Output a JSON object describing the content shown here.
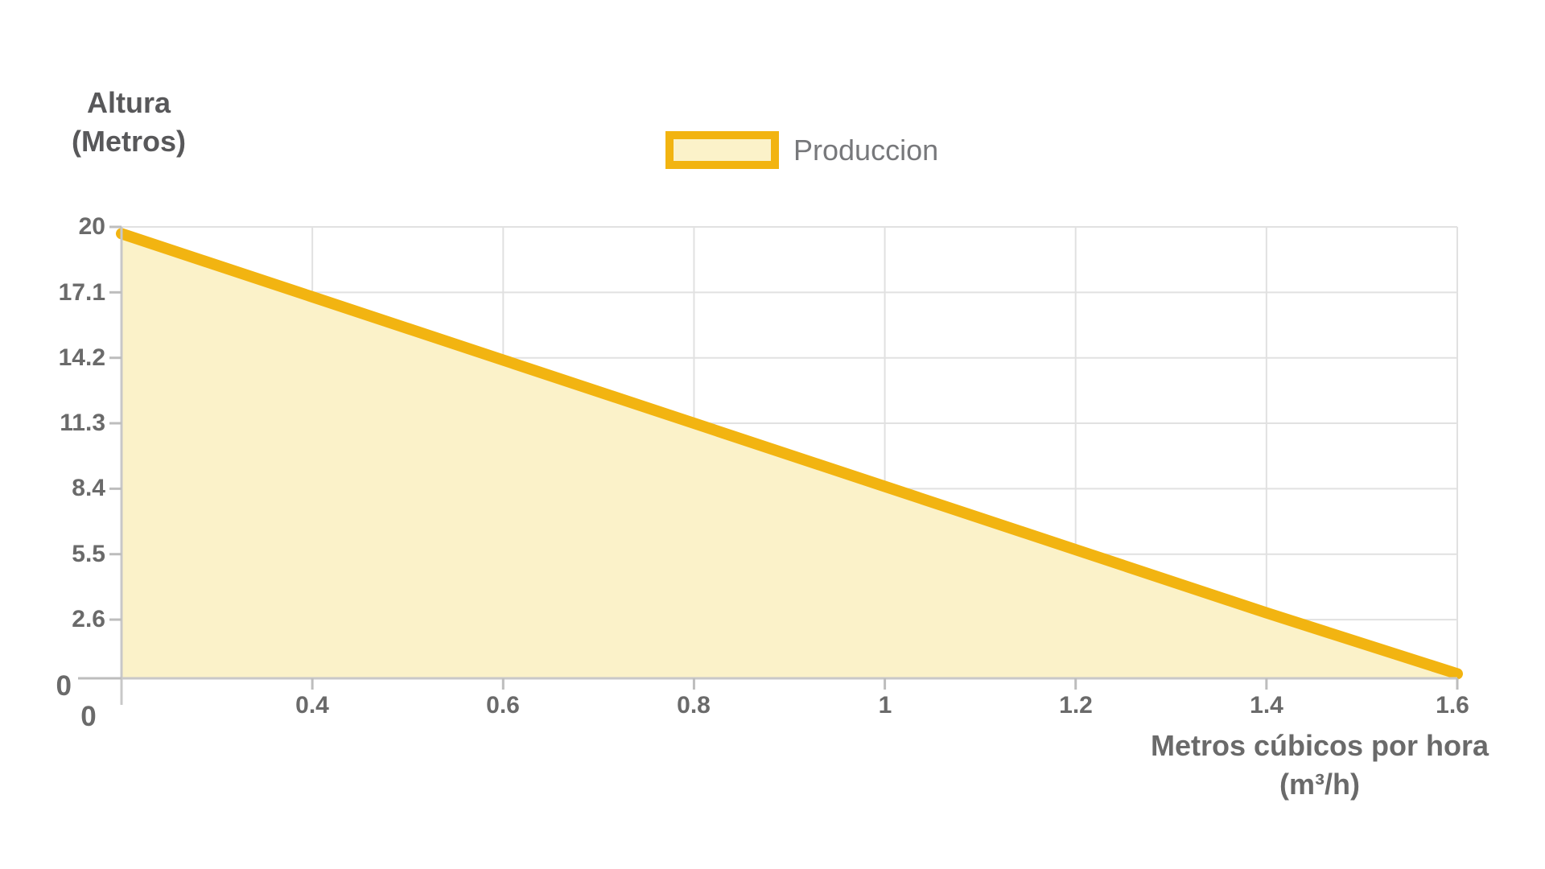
{
  "y_axis_title": {
    "line1": "Altura",
    "line2": "(Metros)"
  },
  "x_axis_title": {
    "line1": "Metros cúbicos por hora",
    "line2": "(m³/h)"
  },
  "legend": {
    "label": "Produccion"
  },
  "colors": {
    "line": "#f2b411",
    "area_fill": "#fbf2c9",
    "grid": "#e1e1e1",
    "axis": "#c8c8c8",
    "tick_mark": "#bdbdbd",
    "tick_text": "#6a6a6a",
    "axis_title_text": "#58585a",
    "legend_text": "#77787b"
  },
  "chart_data": {
    "type": "area",
    "title": "",
    "categories": [
      "0",
      "0.4",
      "0.6",
      "0.8",
      "1",
      "1.2",
      "1.4",
      "1.6"
    ],
    "series": [
      {
        "name": "Produccion",
        "values": [
          19.7,
          16.9,
          14.1,
          11.3,
          8.5,
          5.7,
          2.9,
          0.2
        ]
      }
    ],
    "xlabel": "Metros cúbicos por hora (m³/h)",
    "ylabel": "Altura (Metros)",
    "ylim": [
      0,
      20
    ],
    "y_ticks": [
      20,
      17.1,
      14.2,
      11.3,
      8.4,
      5.5,
      2.6,
      0
    ],
    "y_tick_labels": [
      "20",
      "17.1",
      "14.2",
      "11.3",
      "8.4",
      "5.5",
      "2.6"
    ],
    "y_zero_label": "0",
    "x_tick_labels": [
      "0.4",
      "0.6",
      "0.8",
      "1",
      "1.2",
      "1.4",
      "1.6"
    ],
    "x_zero_label": "0",
    "grid": true,
    "legend_position": "top-center"
  }
}
